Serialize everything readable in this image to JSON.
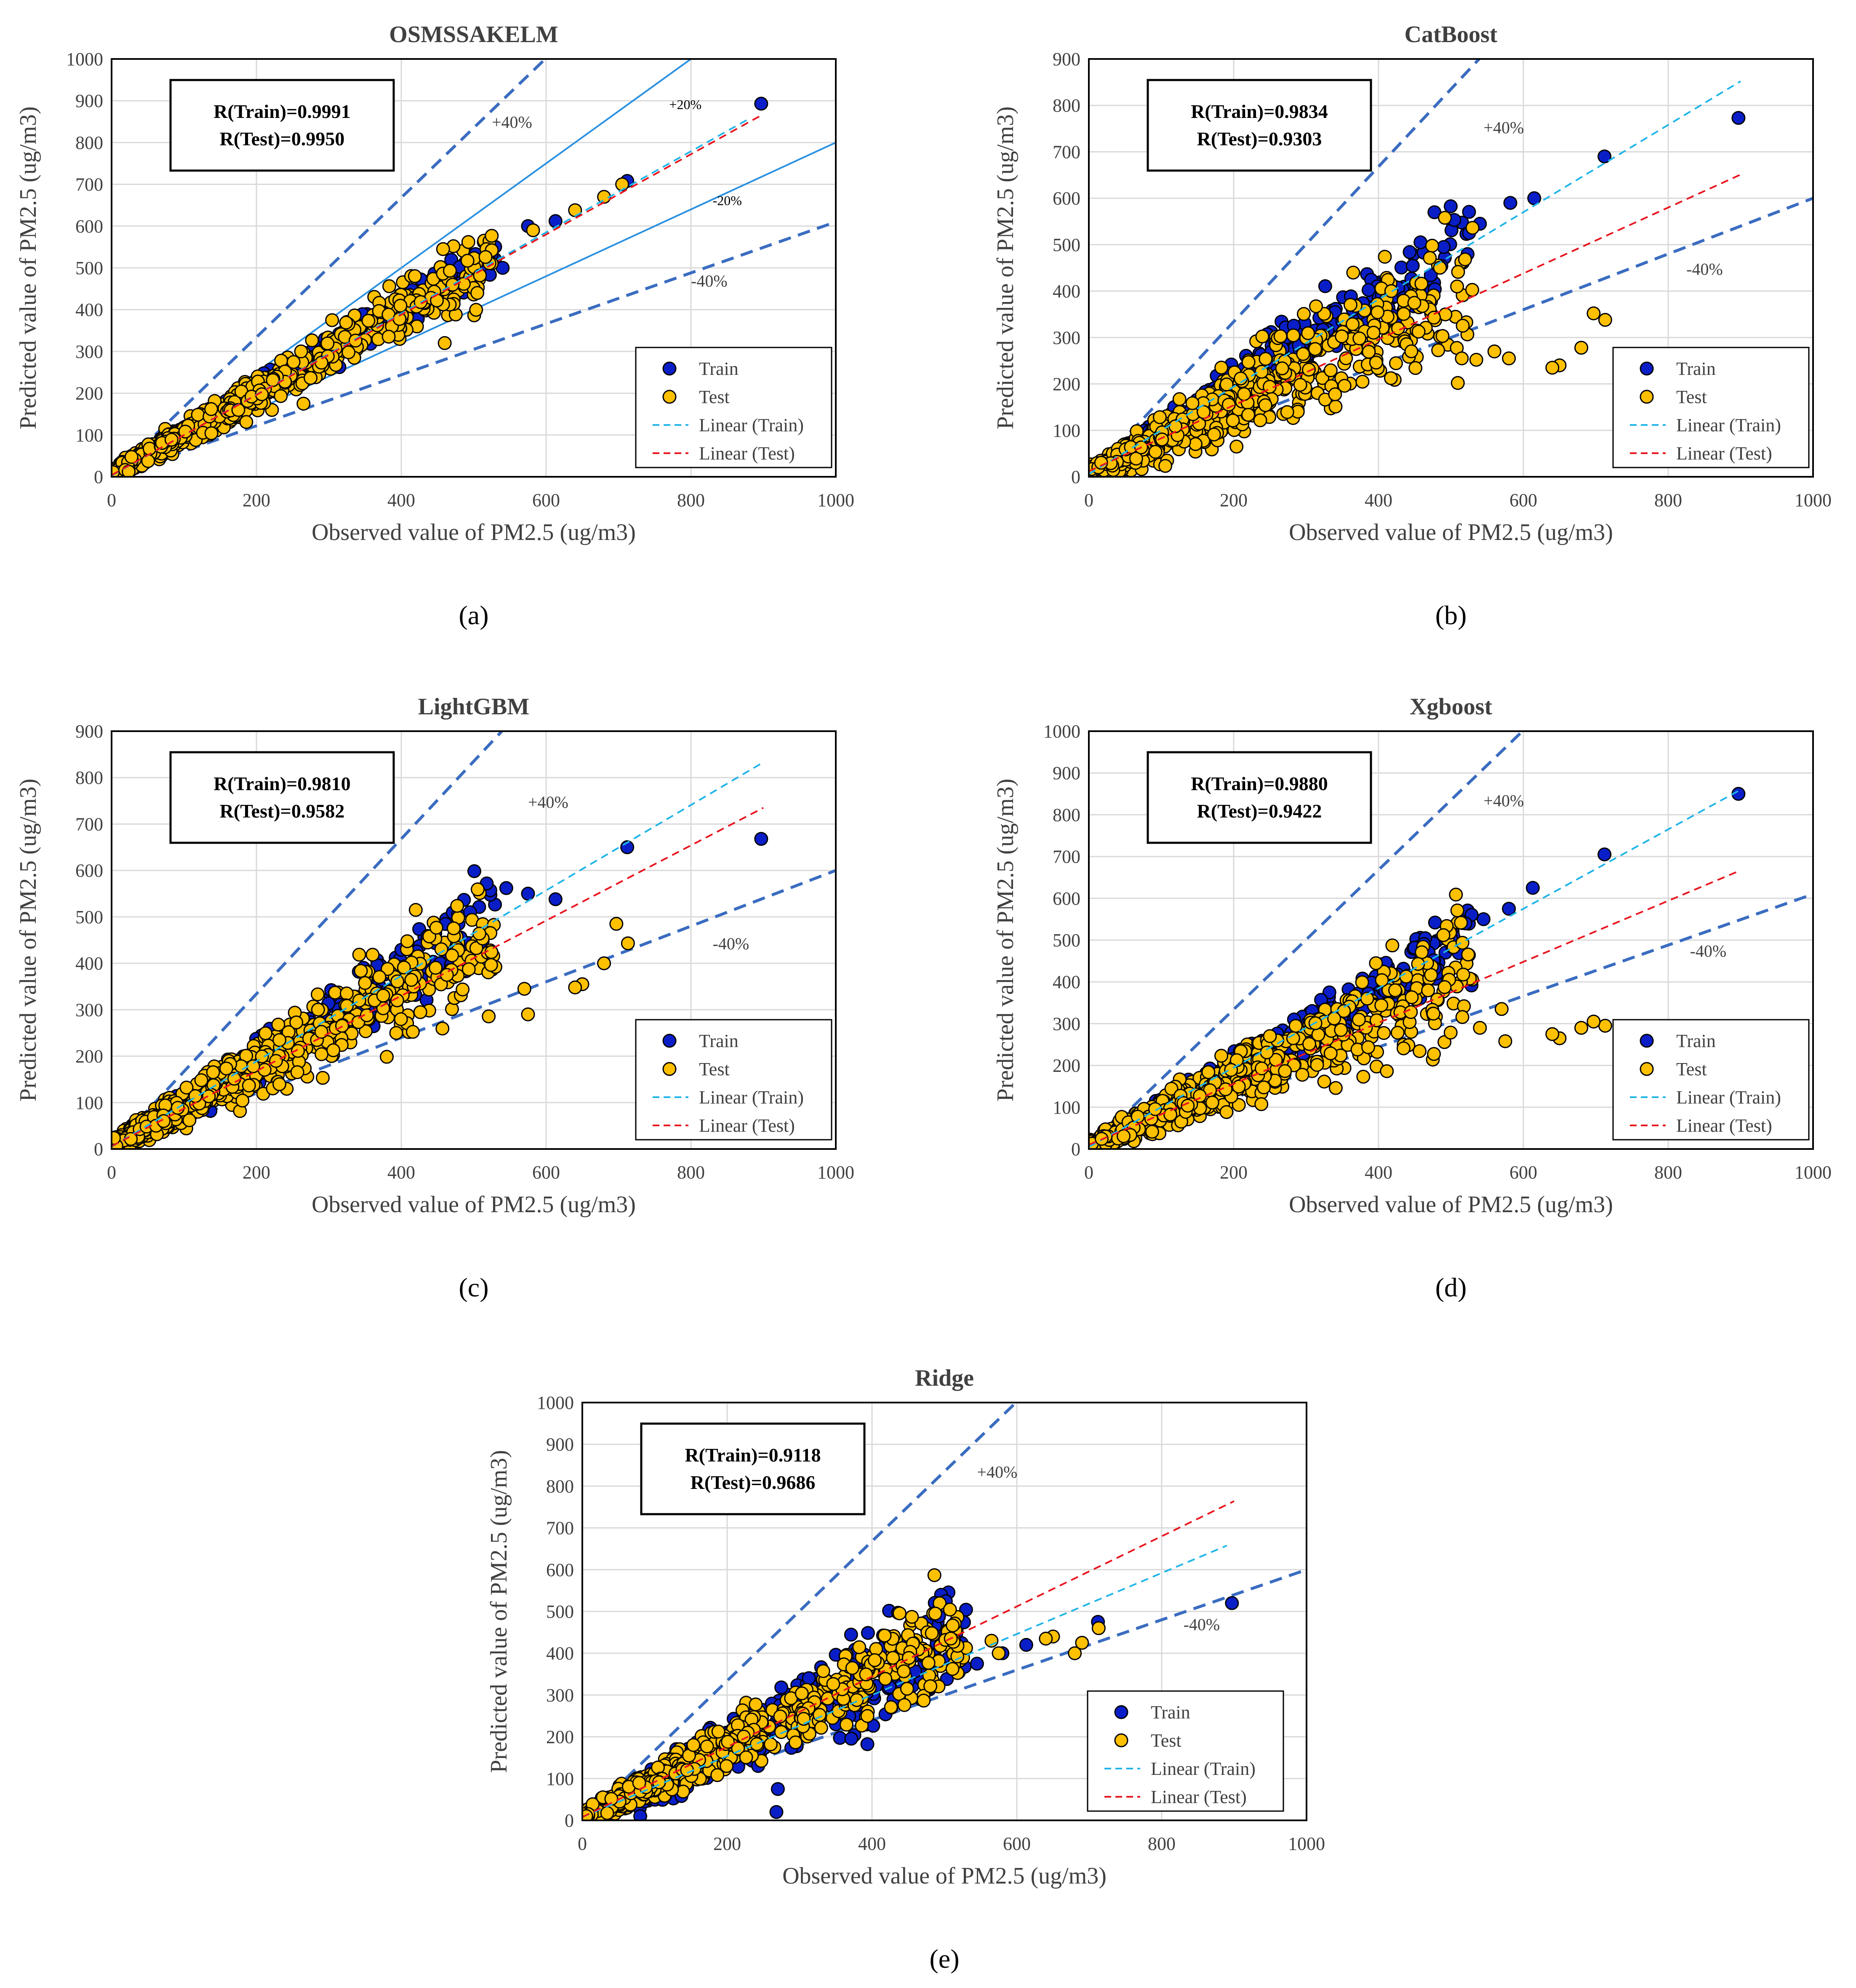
{
  "figure": {
    "colors": {
      "train": "#0a1ec8",
      "test": "#ffc000",
      "linear_train": "#1fb4e8",
      "linear_test": "#e8141e",
      "band40": "#3a6cc0",
      "band20": "#2a90e0",
      "grid": "#d9d9d9"
    }
  },
  "chart_data": [
    {
      "type": "scatter",
      "panel_label": "(a)",
      "title": "OSMSSAKELM",
      "xlabel": "Observed value of  PM2.5 (ug/m3)",
      "ylabel": "Predicted value of  PM2.5 (ug/m3)",
      "xlim": [
        0,
        1000
      ],
      "ylim": [
        0,
        1000
      ],
      "xticks": [
        0,
        200,
        400,
        600,
        800,
        1000
      ],
      "yticks": [
        0,
        100,
        200,
        300,
        400,
        500,
        600,
        700,
        800,
        900,
        1000
      ],
      "stats": [
        "R(Train)=0.9991",
        "R(Test)=0.9950"
      ],
      "legend": [
        "Train",
        "Test",
        "Linear (Train)",
        "Linear (Test)"
      ],
      "legend_position": "bottom-right",
      "bands": [
        {
          "label": "+40%",
          "slope": 1.67,
          "style": "dashed",
          "label_at": [
            525,
            835
          ]
        },
        {
          "label": "+20%",
          "slope": 1.25,
          "style": "solid",
          "label_at": [
            770,
            880
          ]
        },
        {
          "label": "-20%",
          "slope": 0.8,
          "style": "solid",
          "label_at": [
            830,
            650
          ]
        },
        {
          "label": "-40%",
          "slope": 0.61,
          "style": "dashed",
          "label_at": [
            800,
            455
          ]
        }
      ],
      "fits": {
        "train": [
          0.97,
          3,
          880
        ],
        "test": [
          0.96,
          4,
          900
        ]
      },
      "scatter": {
        "n_train": 420,
        "n_test": 680,
        "train_slope": 0.99,
        "test_slope": 0.97,
        "train_spread": 0.06,
        "test_spread": 0.09,
        "seed": 11
      },
      "extreme_points": [
        {
          "series": "train",
          "x": 897,
          "y": 893
        },
        {
          "series": "train",
          "x": 712,
          "y": 708
        },
        {
          "series": "train",
          "x": 613,
          "y": 612
        },
        {
          "series": "train",
          "x": 575,
          "y": 600
        },
        {
          "series": "train",
          "x": 540,
          "y": 500
        },
        {
          "series": "test",
          "x": 705,
          "y": 700
        },
        {
          "series": "test",
          "x": 680,
          "y": 670
        },
        {
          "series": "test",
          "x": 640,
          "y": 638
        },
        {
          "series": "test",
          "x": 582,
          "y": 590
        },
        {
          "series": "test",
          "x": 505,
          "y": 440
        },
        {
          "series": "test",
          "x": 460,
          "y": 320
        },
        {
          "series": "test",
          "x": 265,
          "y": 175
        },
        {
          "series": "test",
          "x": 175,
          "y": 160
        }
      ]
    },
    {
      "type": "scatter",
      "panel_label": "(b)",
      "title": "CatBoost",
      "xlabel": "Observed value of  PM2.5 (ug/m3)",
      "ylabel": "Predicted value of  PM2.5 (ug/m3)",
      "xlim": [
        0,
        1000
      ],
      "ylim": [
        0,
        900
      ],
      "xticks": [
        0,
        200,
        400,
        600,
        800,
        1000
      ],
      "yticks": [
        0,
        100,
        200,
        300,
        400,
        500,
        600,
        700,
        800,
        900
      ],
      "stats": [
        "R(Train)=0.9834",
        "R(Test)=0.9303"
      ],
      "legend": [
        "Train",
        "Test",
        "Linear (Train)",
        "Linear (Test)"
      ],
      "legend_position": "bottom-right",
      "bands": [
        {
          "label": "+40%",
          "slope": 1.67,
          "style": "dashed",
          "label_at": [
            545,
            740
          ]
        },
        {
          "label": "-40%",
          "slope": 0.6,
          "style": "dashed",
          "label_at": [
            825,
            435
          ]
        }
      ],
      "fits": {
        "train": [
          0.94,
          6,
          900
        ],
        "test": [
          0.71,
          12,
          900
        ]
      },
      "scatter": {
        "n_train": 420,
        "n_test": 720,
        "train_slope": 0.96,
        "test_slope": 0.78,
        "train_spread": 0.12,
        "test_spread": 0.2,
        "seed": 23
      },
      "extreme_points": [
        {
          "series": "train",
          "x": 897,
          "y": 773
        },
        {
          "series": "train",
          "x": 712,
          "y": 690
        },
        {
          "series": "train",
          "x": 615,
          "y": 600
        },
        {
          "series": "train",
          "x": 582,
          "y": 590
        },
        {
          "series": "train",
          "x": 540,
          "y": 545
        },
        {
          "series": "train",
          "x": 525,
          "y": 525
        },
        {
          "series": "train",
          "x": 490,
          "y": 495
        },
        {
          "series": "test",
          "x": 713,
          "y": 338
        },
        {
          "series": "test",
          "x": 697,
          "y": 352
        },
        {
          "series": "test",
          "x": 680,
          "y": 278
        },
        {
          "series": "test",
          "x": 650,
          "y": 240
        },
        {
          "series": "test",
          "x": 640,
          "y": 235
        },
        {
          "series": "test",
          "x": 580,
          "y": 255
        },
        {
          "series": "test",
          "x": 560,
          "y": 270
        },
        {
          "series": "test",
          "x": 535,
          "y": 252
        },
        {
          "series": "test",
          "x": 515,
          "y": 255
        }
      ]
    },
    {
      "type": "scatter",
      "panel_label": "(c)",
      "title": "LightGBM",
      "xlabel": "Observed value of  PM2.5 (ug/m3)",
      "ylabel": "Predicted value of  PM2.5 (ug/m3)",
      "xlim": [
        0,
        1000
      ],
      "ylim": [
        0,
        900
      ],
      "xticks": [
        0,
        200,
        400,
        600,
        800,
        1000
      ],
      "yticks": [
        0,
        100,
        200,
        300,
        400,
        500,
        600,
        700,
        800,
        900
      ],
      "stats": [
        "R(Train)=0.9810",
        "R(Test)=0.9582"
      ],
      "legend": [
        "Train",
        "Test",
        "Linear (Train)",
        "Linear (Test)"
      ],
      "legend_position": "bottom-right",
      "bands": [
        {
          "label": "+40%",
          "slope": 1.67,
          "style": "dashed",
          "label_at": [
            575,
            735
          ]
        },
        {
          "label": "-40%",
          "slope": 0.6,
          "style": "dashed",
          "label_at": [
            830,
            430
          ]
        }
      ],
      "fits": {
        "train": [
          0.92,
          5,
          900
        ],
        "test": [
          0.81,
          6,
          900
        ]
      },
      "scatter": {
        "n_train": 420,
        "n_test": 720,
        "train_slope": 0.94,
        "test_slope": 0.86,
        "train_spread": 0.11,
        "test_spread": 0.16,
        "seed": 37
      },
      "extreme_points": [
        {
          "series": "train",
          "x": 897,
          "y": 668
        },
        {
          "series": "train",
          "x": 712,
          "y": 650
        },
        {
          "series": "train",
          "x": 613,
          "y": 538
        },
        {
          "series": "train",
          "x": 575,
          "y": 550
        },
        {
          "series": "train",
          "x": 545,
          "y": 562
        },
        {
          "series": "train",
          "x": 518,
          "y": 572
        },
        {
          "series": "train",
          "x": 495,
          "y": 510
        },
        {
          "series": "test",
          "x": 713,
          "y": 443
        },
        {
          "series": "test",
          "x": 697,
          "y": 485
        },
        {
          "series": "test",
          "x": 680,
          "y": 400
        },
        {
          "series": "test",
          "x": 650,
          "y": 355
        },
        {
          "series": "test",
          "x": 640,
          "y": 348
        },
        {
          "series": "test",
          "x": 575,
          "y": 290
        },
        {
          "series": "test",
          "x": 570,
          "y": 345
        },
        {
          "series": "test",
          "x": 420,
          "y": 515
        }
      ]
    },
    {
      "type": "scatter",
      "panel_label": "(d)",
      "title": "Xgboost",
      "xlabel": "Observed value of  PM2.5 (ug/m3)",
      "ylabel": "Predicted value of  PM2.5 (ug/m3)",
      "xlim": [
        0,
        1000
      ],
      "ylim": [
        0,
        1000
      ],
      "xticks": [
        0,
        200,
        400,
        600,
        800,
        1000
      ],
      "yticks": [
        0,
        100,
        200,
        300,
        400,
        500,
        600,
        700,
        800,
        900,
        1000
      ],
      "stats": [
        "R(Train)=0.9880",
        "R(Test)=0.9422"
      ],
      "legend": [
        "Train",
        "Test",
        "Linear (Train)",
        "Linear (Test)"
      ],
      "legend_position": "bottom-right",
      "bands": [
        {
          "label": "+40%",
          "slope": 1.67,
          "style": "dashed",
          "label_at": [
            545,
            820
          ]
        },
        {
          "label": "-40%",
          "slope": 0.61,
          "style": "dashed",
          "label_at": [
            830,
            460
          ]
        }
      ],
      "fits": {
        "train": [
          0.95,
          5,
          900
        ],
        "test": [
          0.73,
          10,
          900
        ]
      },
      "scatter": {
        "n_train": 420,
        "n_test": 720,
        "train_slope": 0.96,
        "test_slope": 0.8,
        "train_spread": 0.1,
        "test_spread": 0.18,
        "seed": 53
      },
      "extreme_points": [
        {
          "series": "train",
          "x": 897,
          "y": 850
        },
        {
          "series": "train",
          "x": 712,
          "y": 705
        },
        {
          "series": "train",
          "x": 613,
          "y": 625
        },
        {
          "series": "train",
          "x": 580,
          "y": 575
        },
        {
          "series": "train",
          "x": 545,
          "y": 550
        },
        {
          "series": "train",
          "x": 520,
          "y": 540
        },
        {
          "series": "train",
          "x": 500,
          "y": 505
        },
        {
          "series": "test",
          "x": 713,
          "y": 295
        },
        {
          "series": "test",
          "x": 697,
          "y": 305
        },
        {
          "series": "test",
          "x": 680,
          "y": 290
        },
        {
          "series": "test",
          "x": 650,
          "y": 265
        },
        {
          "series": "test",
          "x": 640,
          "y": 275
        },
        {
          "series": "test",
          "x": 575,
          "y": 258
        },
        {
          "series": "test",
          "x": 570,
          "y": 335
        },
        {
          "series": "test",
          "x": 540,
          "y": 290
        }
      ]
    },
    {
      "type": "scatter",
      "panel_label": "(e)",
      "title": "Ridge",
      "xlabel": "Observed value of  PM2.5 (ug/m3)",
      "ylabel": "Predicted value of  PM2.5 (ug/m3)",
      "xlim": [
        0,
        1000
      ],
      "ylim": [
        0,
        1000
      ],
      "xticks": [
        0,
        200,
        400,
        600,
        800,
        1000
      ],
      "yticks": [
        0,
        100,
        200,
        300,
        400,
        500,
        600,
        700,
        800,
        900,
        1000
      ],
      "stats": [
        "R(Train)=0.9118",
        "R(Test)=0.9686"
      ],
      "legend": [
        "Train",
        "Test",
        "Linear (Train)",
        "Linear (Test)"
      ],
      "legend_position": "bottom-left",
      "bands": [
        {
          "label": "+40%",
          "slope": 1.67,
          "style": "dashed",
          "label_at": [
            545,
            820
          ]
        },
        {
          "label": "-40%",
          "slope": 0.6,
          "style": "dashed",
          "label_at": [
            830,
            455
          ]
        }
      ],
      "fits": {
        "train": [
          0.73,
          8,
          890
        ],
        "test": [
          0.84,
          8,
          900
        ]
      },
      "scatter": {
        "n_train": 420,
        "n_test": 720,
        "train_slope": 0.85,
        "test_slope": 0.85,
        "train_spread": 0.2,
        "test_spread": 0.14,
        "seed": 71
      },
      "extreme_points": [
        {
          "series": "train",
          "x": 897,
          "y": 520
        },
        {
          "series": "train",
          "x": 712,
          "y": 475
        },
        {
          "series": "train",
          "x": 613,
          "y": 420
        },
        {
          "series": "train",
          "x": 580,
          "y": 400
        },
        {
          "series": "train",
          "x": 545,
          "y": 375
        },
        {
          "series": "train",
          "x": 270,
          "y": 75
        },
        {
          "series": "train",
          "x": 268,
          "y": 20
        },
        {
          "series": "train",
          "x": 80,
          "y": 10
        },
        {
          "series": "test",
          "x": 713,
          "y": 460
        },
        {
          "series": "test",
          "x": 690,
          "y": 425
        },
        {
          "series": "test",
          "x": 680,
          "y": 400
        },
        {
          "series": "test",
          "x": 650,
          "y": 440
        },
        {
          "series": "test",
          "x": 640,
          "y": 435
        },
        {
          "series": "test",
          "x": 575,
          "y": 400
        },
        {
          "series": "test",
          "x": 565,
          "y": 430
        }
      ]
    }
  ]
}
